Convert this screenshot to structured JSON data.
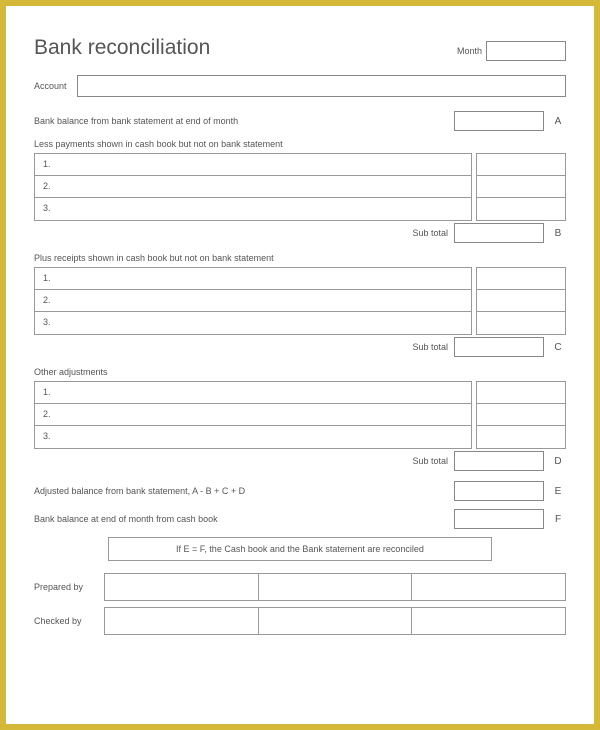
{
  "title": "Bank reconciliation",
  "labels": {
    "month": "Month",
    "account": "Account",
    "bank_balance_stmt": "Bank balance from bank statement at end of month",
    "less_payments": "Less payments shown in cash book but not on bank statement",
    "plus_receipts": "Plus receipts shown in cash book but not on bank statement",
    "other_adjustments": "Other adjustments",
    "sub_total": "Sub total",
    "adjusted_balance": "Adjusted balance from bank statement, A - B + C + D",
    "bank_balance_cashbook": "Bank balance at end of month from cash book",
    "reconciled_msg": "If E = F, the Cash book and the Bank statement are reconciled",
    "prepared_by": "Prepared by",
    "checked_by": "Checked by"
  },
  "letters": {
    "a": "A",
    "b": "B",
    "c": "C",
    "d": "D",
    "e": "E",
    "f": "F"
  },
  "rows": {
    "r1": "1.",
    "r2": "2.",
    "r3": "3."
  },
  "colors": {
    "frame": "#d4b838",
    "border": "#999",
    "text": "#555"
  }
}
